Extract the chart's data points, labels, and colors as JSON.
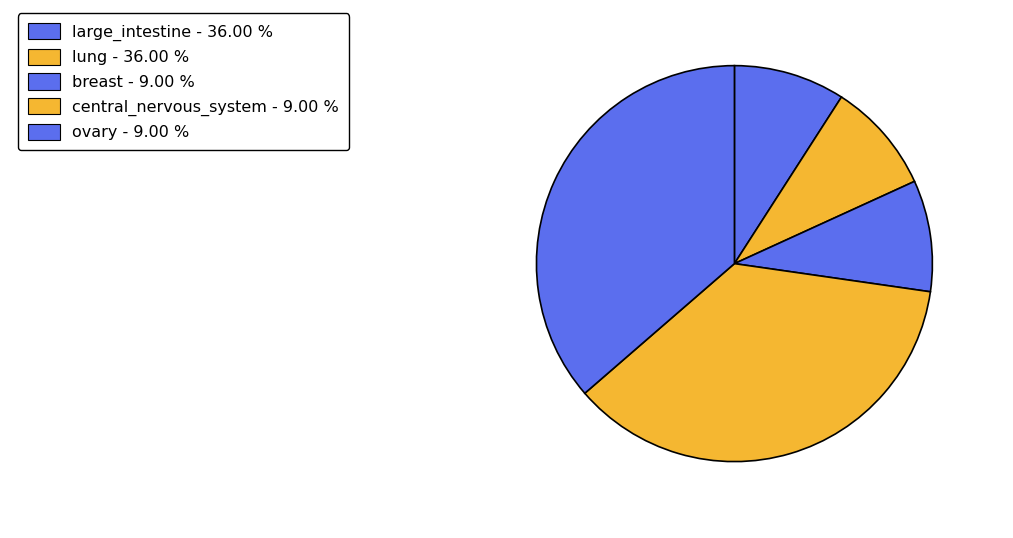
{
  "labels": [
    "ovary",
    "central_nervous_system",
    "breast",
    "lung",
    "large_intestine"
  ],
  "values": [
    9,
    9,
    9,
    36,
    36
  ],
  "colors": [
    "#5b6eee",
    "#f5b731",
    "#5b6eee",
    "#f5b731",
    "#5b6eee"
  ],
  "legend_labels": [
    "large_intestine - 36.00 %",
    "lung - 36.00 %",
    "breast - 9.00 %",
    "central_nervous_system - 9.00 %",
    "ovary - 9.00 %"
  ],
  "legend_colors": [
    "#5b6eee",
    "#f5b731",
    "#5b6eee",
    "#f5b731",
    "#5b6eee"
  ],
  "startangle": 90,
  "counterclock": false,
  "background_color": "#ffffff",
  "edgecolor": "#000000",
  "linewidth": 1.2,
  "legend_fontsize": 11.5
}
